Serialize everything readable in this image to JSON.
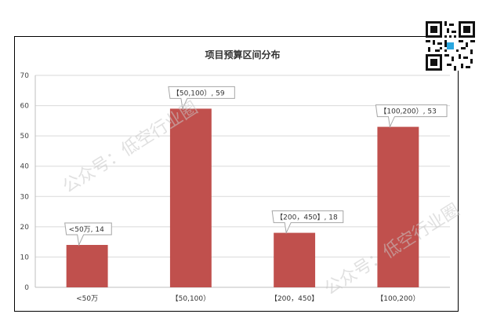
{
  "chart_data": {
    "type": "bar",
    "title": "项目预算区间分布",
    "categories": [
      "<50万",
      "【50,100）",
      "【200，450】",
      "【100,200）"
    ],
    "values": [
      14,
      59,
      18,
      53
    ],
    "data_labels": [
      "<50万, 14",
      "【50,100）, 59",
      "【200，450】, 18",
      "【100,200）, 53"
    ],
    "ylim": [
      0,
      70
    ],
    "yticks": [
      0,
      10,
      20,
      30,
      40,
      50,
      60,
      70
    ],
    "grid": true,
    "legend": "none",
    "bar_color": "#c0504d"
  },
  "watermark": {
    "text_1": "公众号：低空行业圈",
    "text_2": "公众号：低空行业圈"
  }
}
